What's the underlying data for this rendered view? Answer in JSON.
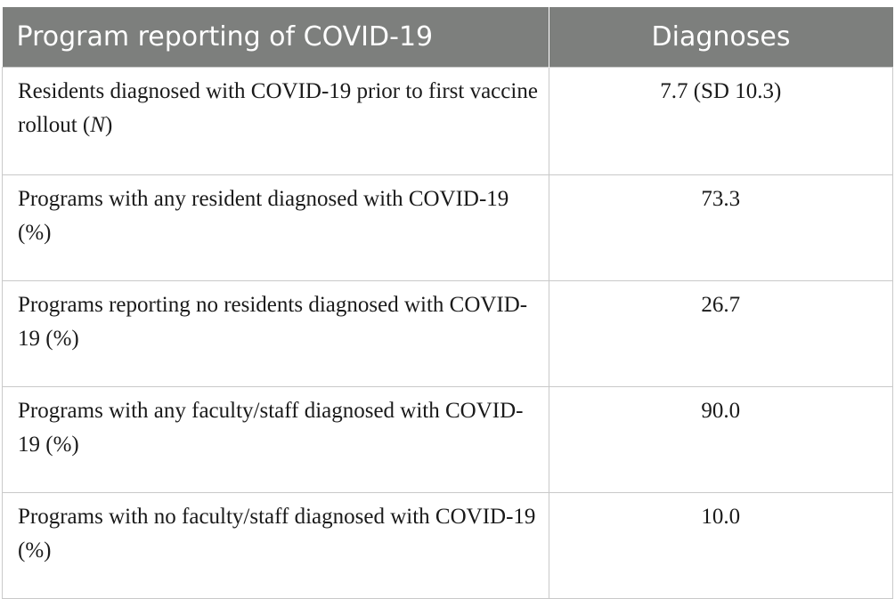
{
  "table": {
    "headers": [
      "Program reporting of COVID-19",
      "Diagnoses"
    ],
    "rows": [
      {
        "label": "Residents diagnosed with COVID-19 prior to first vaccine rollout (",
        "label_italic": "N",
        "label_suffix": ")",
        "value": "7.7 (SD 10.3)"
      },
      {
        "label": "Programs with any resident diagnosed with COVID-19 (%)",
        "value": "73.3"
      },
      {
        "label": "Programs reporting no residents diagnosed with COVID-19 (%)",
        "value": "26.7"
      },
      {
        "label": "Programs with any faculty/staff diagnosed with COVID-19 (%)",
        "value": "90.0"
      },
      {
        "label": "Programs with no faculty/staff diagnosed with COVID-19 (%)",
        "value": "10.0"
      }
    ]
  }
}
